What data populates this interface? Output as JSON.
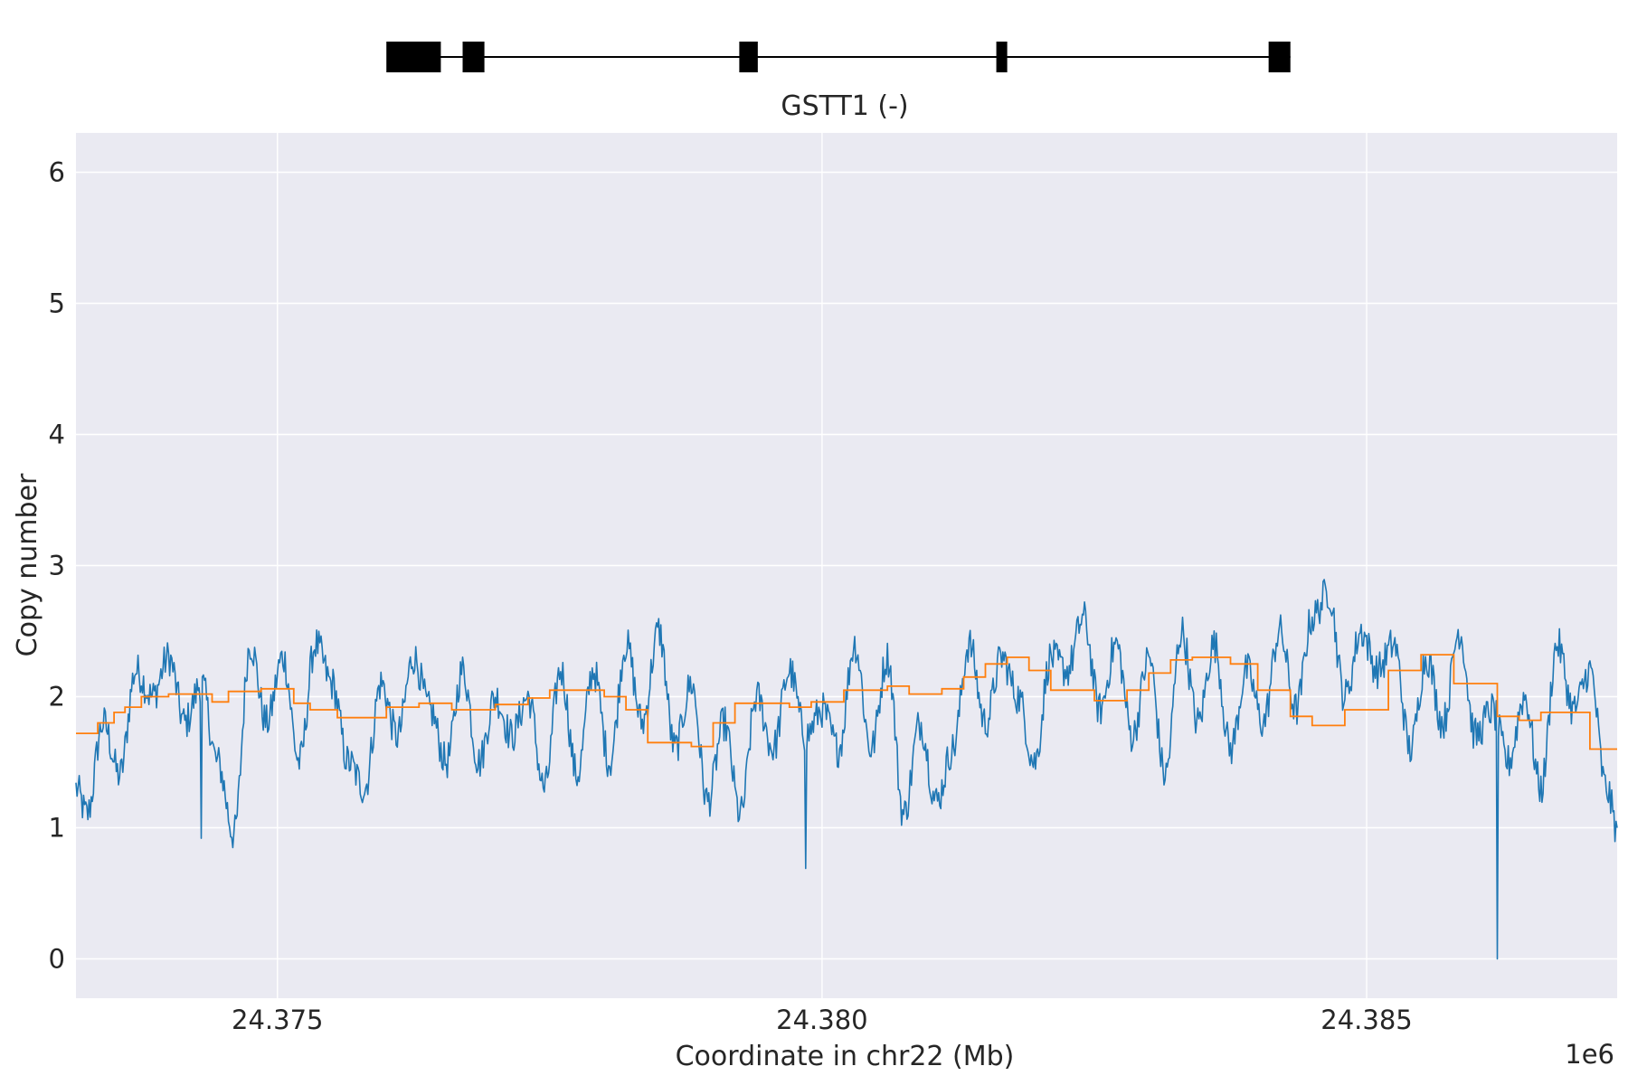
{
  "chart_data": {
    "type": "line",
    "gene": {
      "label": "GSTT1 (-)",
      "intron_range": [
        24376.2,
        24384.3
      ],
      "exons": [
        [
          24376.0,
          24376.5
        ],
        [
          24376.7,
          24376.9
        ],
        [
          24379.24,
          24379.41
        ],
        [
          24381.6,
          24381.7
        ],
        [
          24384.1,
          24384.3
        ]
      ]
    },
    "xlabel": "Coordinate in chr22 (Mb)",
    "ylabel": "Copy number",
    "offset_label": "1e6",
    "xlim": [
      24373.15,
      24387.3
    ],
    "ylim": [
      -0.3,
      6.3
    ],
    "x_ticks": [
      24375,
      24380,
      24385
    ],
    "x_tick_labels": [
      "24.375",
      "24.380",
      "24.385"
    ],
    "y_ticks": [
      0,
      1,
      2,
      3,
      4,
      5,
      6
    ],
    "y_tick_labels": [
      "0",
      "1",
      "2",
      "3",
      "4",
      "5",
      "6"
    ],
    "grid": true,
    "background": "#eaeaf2",
    "series": [
      {
        "color": "#1f77b4",
        "style": "noisy-line",
        "x": [
          24373.15,
          24373.25,
          24373.4,
          24373.55,
          24373.7,
          24373.85,
          24374.0,
          24374.15,
          24374.3,
          24374.45,
          24374.6,
          24374.75,
          24374.9,
          24375.05,
          24375.2,
          24375.35,
          24375.5,
          24375.65,
          24375.8,
          24375.95,
          24376.1,
          24376.25,
          24376.4,
          24376.55,
          24376.7,
          24376.85,
          24377.0,
          24377.15,
          24377.3,
          24377.45,
          24377.6,
          24377.75,
          24377.9,
          24378.05,
          24378.2,
          24378.35,
          24378.5,
          24378.65,
          24378.8,
          24378.95,
          24379.1,
          24379.25,
          24379.4,
          24379.55,
          24379.7,
          24379.85,
          24380.0,
          24380.15,
          24380.3,
          24380.45,
          24380.6,
          24380.75,
          24380.9,
          24381.05,
          24381.2,
          24381.35,
          24381.5,
          24381.65,
          24381.8,
          24381.95,
          24382.1,
          24382.25,
          24382.4,
          24382.55,
          24382.7,
          24382.85,
          24383.0,
          24383.15,
          24383.3,
          24383.45,
          24383.6,
          24383.75,
          24383.9,
          24384.05,
          24384.2,
          24384.35,
          24384.5,
          24384.65,
          24384.8,
          24384.95,
          24385.1,
          24385.25,
          24385.4,
          24385.55,
          24385.7,
          24385.85,
          24386.0,
          24386.15,
          24386.3,
          24386.45,
          24386.6,
          24386.75,
          24386.9,
          24387.05,
          24387.2,
          24387.3
        ],
        "y": [
          1.3,
          1.1,
          1.8,
          1.4,
          2.2,
          2.0,
          2.3,
          1.8,
          2.1,
          1.5,
          0.95,
          2.4,
          1.8,
          2.3,
          1.5,
          2.4,
          2.1,
          1.5,
          1.3,
          2.1,
          1.7,
          2.3,
          1.9,
          1.5,
          2.2,
          1.5,
          2.0,
          1.7,
          2.0,
          1.3,
          2.2,
          1.4,
          2.2,
          1.5,
          2.4,
          1.8,
          2.5,
          1.6,
          2.1,
          1.2,
          1.8,
          1.1,
          2.0,
          1.6,
          2.2,
          1.7,
          1.9,
          1.6,
          2.4,
          1.6,
          2.3,
          1.1,
          1.8,
          1.2,
          1.6,
          2.4,
          1.8,
          2.3,
          2.0,
          1.5,
          2.3,
          2.2,
          2.6,
          1.9,
          2.4,
          1.7,
          2.3,
          1.4,
          2.5,
          1.8,
          2.4,
          1.6,
          2.2,
          1.8,
          2.5,
          1.9,
          2.6,
          2.8,
          2.0,
          2.5,
          2.2,
          2.4,
          1.6,
          2.3,
          1.8,
          2.5,
          1.7,
          1.9,
          1.5,
          2.0,
          1.3,
          2.4,
          1.9,
          2.2,
          1.3,
          1.0
        ],
        "spikes": [
          [
            24374.3,
            0.92
          ],
          [
            24379.85,
            0.69
          ],
          [
            24386.2,
            0.0
          ]
        ]
      },
      {
        "color": "#ff7f0e",
        "style": "step",
        "x": [
          24373.15,
          24373.35,
          24373.5,
          24373.6,
          24373.75,
          24374.0,
          24374.4,
          24374.55,
          24374.85,
          24375.15,
          24375.3,
          24375.55,
          24376.0,
          24376.3,
          24376.6,
          24377.0,
          24377.3,
          24377.5,
          24378.0,
          24378.2,
          24378.4,
          24378.8,
          24379.0,
          24379.2,
          24379.7,
          24379.9,
          24380.2,
          24380.6,
          24380.8,
          24381.1,
          24381.3,
          24381.5,
          24381.7,
          24381.9,
          24382.1,
          24382.5,
          24382.8,
          24383.0,
          24383.2,
          24383.4,
          24383.75,
          24384.0,
          24384.3,
          24384.5,
          24384.8,
          24385.2,
          24385.5,
          24385.8,
          24386.2,
          24386.4,
          24386.6,
          24387.05
        ],
        "y": [
          1.72,
          1.8,
          1.88,
          1.92,
          2.0,
          2.02,
          1.96,
          2.04,
          2.06,
          1.95,
          1.9,
          1.84,
          1.92,
          1.95,
          1.9,
          1.94,
          1.99,
          2.05,
          2.0,
          1.9,
          1.65,
          1.62,
          1.8,
          1.95,
          1.92,
          1.96,
          2.05,
          2.08,
          2.02,
          2.06,
          2.15,
          2.25,
          2.3,
          2.2,
          2.05,
          1.97,
          2.05,
          2.18,
          2.28,
          2.3,
          2.25,
          2.05,
          1.85,
          1.78,
          1.9,
          2.2,
          2.32,
          2.1,
          1.85,
          1.82,
          1.88,
          1.6
        ],
        "x_end": 24387.3
      }
    ]
  }
}
